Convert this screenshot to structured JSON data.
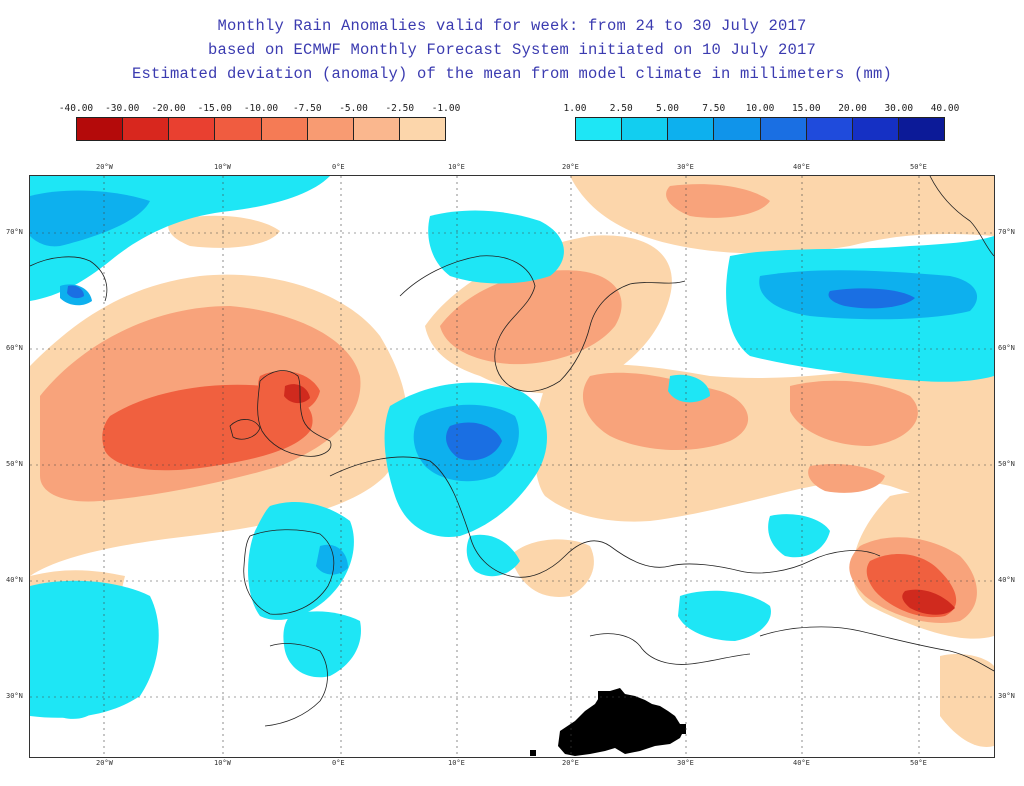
{
  "title": {
    "line1": "Monthly Rain Anomalies valid for week: from 24 to 30 July 2017",
    "line2": "based on ECMWF Monthly Forecast System initiated on 10 July 2017",
    "line3": "Estimated deviation (anomaly) of the mean from model climate in millimeters (mm)"
  },
  "legend_negative": {
    "ticks": [
      "-40.00",
      "-30.00",
      "-20.00",
      "-15.00",
      "-10.00",
      "-7.50",
      "-5.00",
      "-2.50",
      "-1.00"
    ],
    "colors": [
      "#b40a0a",
      "#d8271e",
      "#e94030",
      "#f05c40",
      "#f57b55",
      "#f89b72",
      "#fab78e",
      "#fcd6ab"
    ]
  },
  "legend_positive": {
    "ticks": [
      "1.00",
      "2.50",
      "5.00",
      "7.50",
      "10.00",
      "15.00",
      "20.00",
      "30.00",
      "40.00"
    ],
    "colors": [
      "#1ee6f5",
      "#12cef0",
      "#0db0ee",
      "#1094ea",
      "#1a6fe3",
      "#1f4bdc",
      "#1530c4",
      "#0c1a98"
    ]
  },
  "longitude_labels": [
    "20°W",
    "10°W",
    "0°E",
    "10°E",
    "20°E",
    "30°E",
    "40°E",
    "50°E"
  ],
  "latitude_labels": [
    "70°N",
    "60°N",
    "50°N",
    "40°N",
    "30°N"
  ],
  "colors": {
    "title_text": "#3b3bb0",
    "no_anomaly": "#ffffff",
    "coastline": "#222222",
    "masked": "#000000"
  }
}
